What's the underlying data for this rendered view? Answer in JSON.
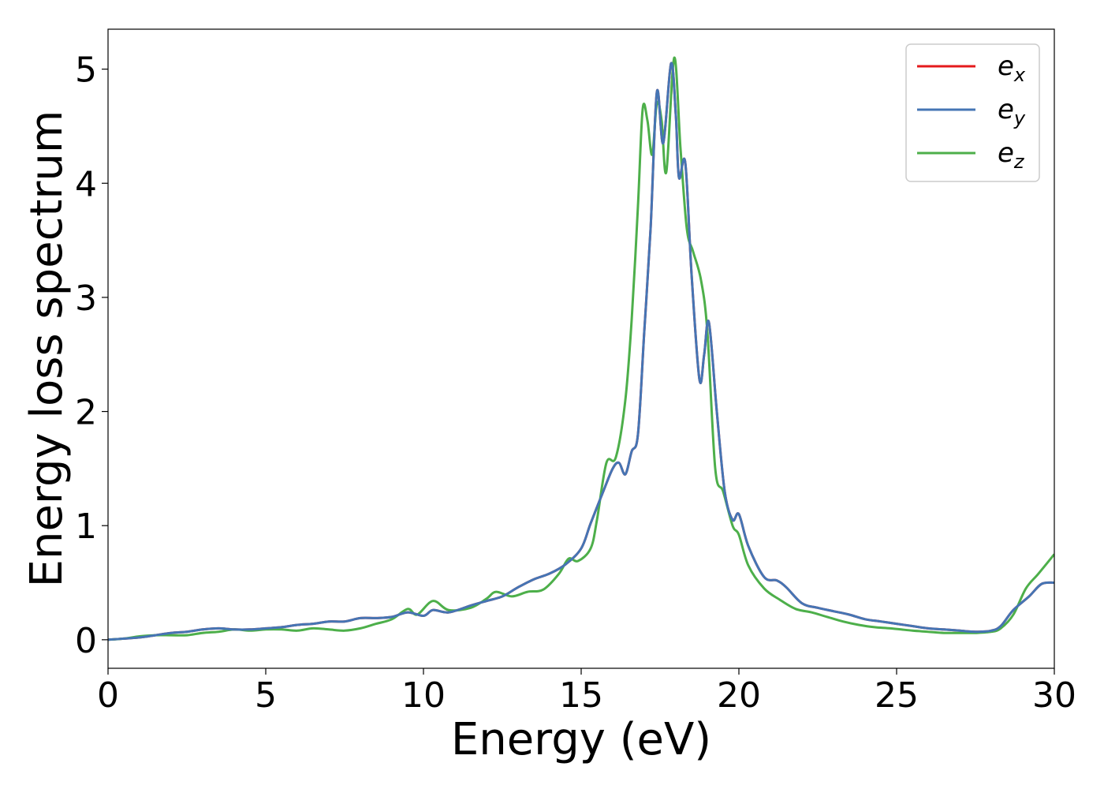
{
  "chart_data": {
    "type": "line",
    "title": "",
    "xlabel": "Energy (eV)",
    "ylabel": "Energy loss spectrum",
    "xlim": [
      0,
      30
    ],
    "ylim": [
      -0.25,
      5.35
    ],
    "xticks": [
      0,
      5,
      10,
      15,
      20,
      25,
      30
    ],
    "yticks": [
      0,
      1,
      2,
      3,
      4,
      5
    ],
    "grid": false,
    "legend_position": "top-right",
    "series": [
      {
        "name": "e",
        "subscript": "x",
        "color": "#e41a1c",
        "points": [
          [
            0,
            0.0
          ],
          [
            0.5,
            0.01
          ],
          [
            1,
            0.02
          ],
          [
            1.5,
            0.04
          ],
          [
            2,
            0.06
          ],
          [
            2.5,
            0.07
          ],
          [
            3,
            0.09
          ],
          [
            3.5,
            0.1
          ],
          [
            4,
            0.09
          ],
          [
            4.5,
            0.09
          ],
          [
            5,
            0.1
          ],
          [
            5.5,
            0.11
          ],
          [
            6,
            0.13
          ],
          [
            6.5,
            0.14
          ],
          [
            7,
            0.16
          ],
          [
            7.5,
            0.16
          ],
          [
            8,
            0.19
          ],
          [
            8.5,
            0.19
          ],
          [
            9,
            0.2
          ],
          [
            9.5,
            0.24
          ],
          [
            10,
            0.21
          ],
          [
            10.3,
            0.26
          ],
          [
            10.8,
            0.24
          ],
          [
            11.5,
            0.3
          ],
          [
            12,
            0.34
          ],
          [
            12.5,
            0.38
          ],
          [
            13,
            0.46
          ],
          [
            13.5,
            0.53
          ],
          [
            14,
            0.58
          ],
          [
            14.5,
            0.66
          ],
          [
            15,
            0.8
          ],
          [
            15.3,
            1.02
          ],
          [
            15.7,
            1.3
          ],
          [
            16,
            1.5
          ],
          [
            16.2,
            1.55
          ],
          [
            16.4,
            1.45
          ],
          [
            16.6,
            1.65
          ],
          [
            16.8,
            1.8
          ],
          [
            17,
            2.7
          ],
          [
            17.2,
            3.6
          ],
          [
            17.4,
            4.8
          ],
          [
            17.6,
            4.35
          ],
          [
            17.85,
            5.05
          ],
          [
            18,
            4.6
          ],
          [
            18.1,
            4.05
          ],
          [
            18.3,
            4.18
          ],
          [
            18.5,
            3.2
          ],
          [
            18.75,
            2.28
          ],
          [
            18.9,
            2.5
          ],
          [
            19.05,
            2.78
          ],
          [
            19.3,
            2.0
          ],
          [
            19.55,
            1.3
          ],
          [
            19.8,
            1.05
          ],
          [
            20,
            1.1
          ],
          [
            20.3,
            0.82
          ],
          [
            20.8,
            0.55
          ],
          [
            21.2,
            0.52
          ],
          [
            21.5,
            0.46
          ],
          [
            22,
            0.32
          ],
          [
            22.5,
            0.28
          ],
          [
            23,
            0.25
          ],
          [
            23.5,
            0.22
          ],
          [
            24,
            0.18
          ],
          [
            24.5,
            0.16
          ],
          [
            25,
            0.14
          ],
          [
            25.5,
            0.12
          ],
          [
            26,
            0.1
          ],
          [
            26.5,
            0.09
          ],
          [
            27,
            0.08
          ],
          [
            27.5,
            0.07
          ],
          [
            28,
            0.08
          ],
          [
            28.3,
            0.12
          ],
          [
            28.7,
            0.26
          ],
          [
            29.2,
            0.38
          ],
          [
            29.6,
            0.49
          ],
          [
            30,
            0.5
          ]
        ]
      },
      {
        "name": "e",
        "subscript": "y",
        "color": "#4575b4",
        "points": [
          [
            0,
            0.0
          ],
          [
            0.5,
            0.01
          ],
          [
            1,
            0.02
          ],
          [
            1.5,
            0.04
          ],
          [
            2,
            0.06
          ],
          [
            2.5,
            0.07
          ],
          [
            3,
            0.09
          ],
          [
            3.5,
            0.1
          ],
          [
            4,
            0.09
          ],
          [
            4.5,
            0.09
          ],
          [
            5,
            0.1
          ],
          [
            5.5,
            0.11
          ],
          [
            6,
            0.13
          ],
          [
            6.5,
            0.14
          ],
          [
            7,
            0.16
          ],
          [
            7.5,
            0.16
          ],
          [
            8,
            0.19
          ],
          [
            8.5,
            0.19
          ],
          [
            9,
            0.2
          ],
          [
            9.5,
            0.24
          ],
          [
            10,
            0.21
          ],
          [
            10.3,
            0.26
          ],
          [
            10.8,
            0.24
          ],
          [
            11.5,
            0.3
          ],
          [
            12,
            0.34
          ],
          [
            12.5,
            0.38
          ],
          [
            13,
            0.46
          ],
          [
            13.5,
            0.53
          ],
          [
            14,
            0.58
          ],
          [
            14.5,
            0.66
          ],
          [
            15,
            0.8
          ],
          [
            15.3,
            1.02
          ],
          [
            15.7,
            1.3
          ],
          [
            16,
            1.5
          ],
          [
            16.2,
            1.55
          ],
          [
            16.4,
            1.45
          ],
          [
            16.6,
            1.65
          ],
          [
            16.8,
            1.8
          ],
          [
            17,
            2.7
          ],
          [
            17.2,
            3.6
          ],
          [
            17.4,
            4.8
          ],
          [
            17.6,
            4.35
          ],
          [
            17.85,
            5.05
          ],
          [
            18,
            4.6
          ],
          [
            18.1,
            4.05
          ],
          [
            18.3,
            4.18
          ],
          [
            18.5,
            3.2
          ],
          [
            18.75,
            2.28
          ],
          [
            18.9,
            2.5
          ],
          [
            19.05,
            2.78
          ],
          [
            19.3,
            2.0
          ],
          [
            19.55,
            1.3
          ],
          [
            19.8,
            1.05
          ],
          [
            20,
            1.1
          ],
          [
            20.3,
            0.82
          ],
          [
            20.8,
            0.55
          ],
          [
            21.2,
            0.52
          ],
          [
            21.5,
            0.46
          ],
          [
            22,
            0.32
          ],
          [
            22.5,
            0.28
          ],
          [
            23,
            0.25
          ],
          [
            23.5,
            0.22
          ],
          [
            24,
            0.18
          ],
          [
            24.5,
            0.16
          ],
          [
            25,
            0.14
          ],
          [
            25.5,
            0.12
          ],
          [
            26,
            0.1
          ],
          [
            26.5,
            0.09
          ],
          [
            27,
            0.08
          ],
          [
            27.5,
            0.07
          ],
          [
            28,
            0.08
          ],
          [
            28.3,
            0.12
          ],
          [
            28.7,
            0.26
          ],
          [
            29.2,
            0.38
          ],
          [
            29.6,
            0.49
          ],
          [
            30,
            0.5
          ]
        ]
      },
      {
        "name": "e",
        "subscript": "z",
        "color": "#4daf4a",
        "points": [
          [
            0,
            0.0
          ],
          [
            0.5,
            0.01
          ],
          [
            1,
            0.03
          ],
          [
            1.5,
            0.04
          ],
          [
            2,
            0.04
          ],
          [
            2.5,
            0.04
          ],
          [
            3,
            0.06
          ],
          [
            3.5,
            0.07
          ],
          [
            4,
            0.09
          ],
          [
            4.5,
            0.08
          ],
          [
            5,
            0.09
          ],
          [
            5.5,
            0.09
          ],
          [
            6,
            0.08
          ],
          [
            6.5,
            0.1
          ],
          [
            7,
            0.09
          ],
          [
            7.5,
            0.08
          ],
          [
            8,
            0.1
          ],
          [
            8.5,
            0.14
          ],
          [
            9,
            0.18
          ],
          [
            9.5,
            0.27
          ],
          [
            9.8,
            0.22
          ],
          [
            10.3,
            0.34
          ],
          [
            10.8,
            0.26
          ],
          [
            11.5,
            0.28
          ],
          [
            12,
            0.36
          ],
          [
            12.3,
            0.42
          ],
          [
            12.8,
            0.38
          ],
          [
            13.3,
            0.42
          ],
          [
            13.8,
            0.44
          ],
          [
            14.3,
            0.58
          ],
          [
            14.6,
            0.71
          ],
          [
            14.9,
            0.69
          ],
          [
            15.3,
            0.8
          ],
          [
            15.5,
            1.05
          ],
          [
            15.8,
            1.55
          ],
          [
            16.1,
            1.6
          ],
          [
            16.4,
            2.1
          ],
          [
            16.6,
            2.8
          ],
          [
            16.8,
            3.8
          ],
          [
            16.95,
            4.65
          ],
          [
            17.1,
            4.55
          ],
          [
            17.25,
            4.25
          ],
          [
            17.4,
            4.7
          ],
          [
            17.55,
            4.55
          ],
          [
            17.7,
            4.1
          ],
          [
            17.95,
            5.1
          ],
          [
            18.15,
            4.3
          ],
          [
            18.35,
            3.6
          ],
          [
            18.55,
            3.4
          ],
          [
            18.8,
            3.15
          ],
          [
            19.0,
            2.7
          ],
          [
            19.25,
            1.5
          ],
          [
            19.5,
            1.3
          ],
          [
            19.8,
            1.0
          ],
          [
            20.0,
            0.92
          ],
          [
            20.3,
            0.65
          ],
          [
            20.8,
            0.45
          ],
          [
            21.3,
            0.35
          ],
          [
            21.8,
            0.27
          ],
          [
            22.3,
            0.24
          ],
          [
            22.8,
            0.2
          ],
          [
            23.3,
            0.16
          ],
          [
            23.8,
            0.13
          ],
          [
            24.3,
            0.11
          ],
          [
            24.8,
            0.1
          ],
          [
            25.5,
            0.08
          ],
          [
            26,
            0.07
          ],
          [
            26.5,
            0.06
          ],
          [
            27,
            0.06
          ],
          [
            27.5,
            0.06
          ],
          [
            28,
            0.07
          ],
          [
            28.3,
            0.1
          ],
          [
            28.7,
            0.22
          ],
          [
            29.1,
            0.45
          ],
          [
            29.5,
            0.58
          ],
          [
            30,
            0.75
          ]
        ]
      }
    ]
  }
}
